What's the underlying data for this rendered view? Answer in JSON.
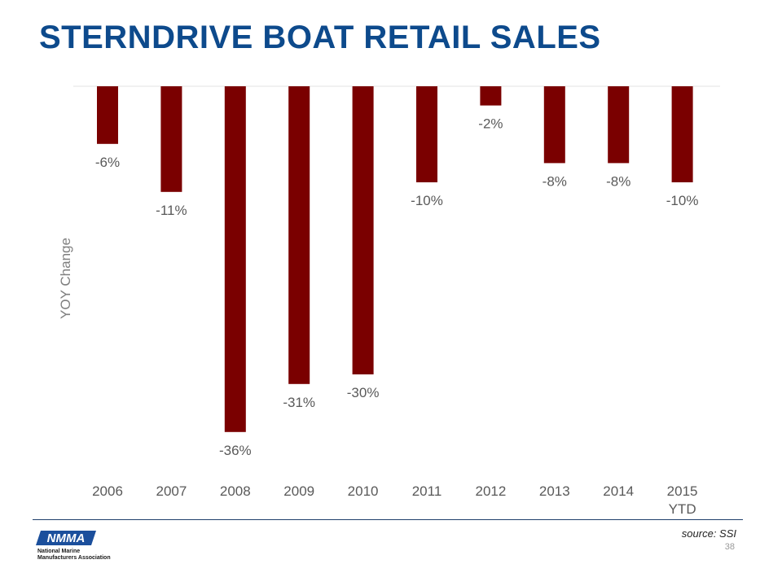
{
  "title": "STERNDRIVE BOAT RETAIL SALES",
  "chart_data": {
    "type": "bar",
    "title": "",
    "xlabel": "",
    "ylabel": "YOY Change",
    "categories": [
      "2006",
      "2007",
      "2008",
      "2009",
      "2010",
      "2011",
      "2012",
      "2013",
      "2014",
      "2015\nYTD"
    ],
    "values": [
      -6,
      -11,
      -36,
      -31,
      -30,
      -10,
      -2,
      -8,
      -8,
      -10
    ],
    "data_labels": [
      "-6%",
      "-11%",
      "-36%",
      "-31%",
      "-30%",
      "-10%",
      "-2%",
      "-8%",
      "-8%",
      "-10%"
    ],
    "ylim": [
      -36,
      0
    ],
    "grid": false,
    "bar_color": "#7a0000"
  },
  "footer": {
    "source": "source: SSI",
    "page_number": "38",
    "logo_text": "NMMA",
    "logo_subtext": "National Marine\nManufacturers Association"
  },
  "colors": {
    "title": "#0d4a8c",
    "bar": "#7a0000",
    "divider": "#1f3f6b",
    "label": "#595959"
  }
}
